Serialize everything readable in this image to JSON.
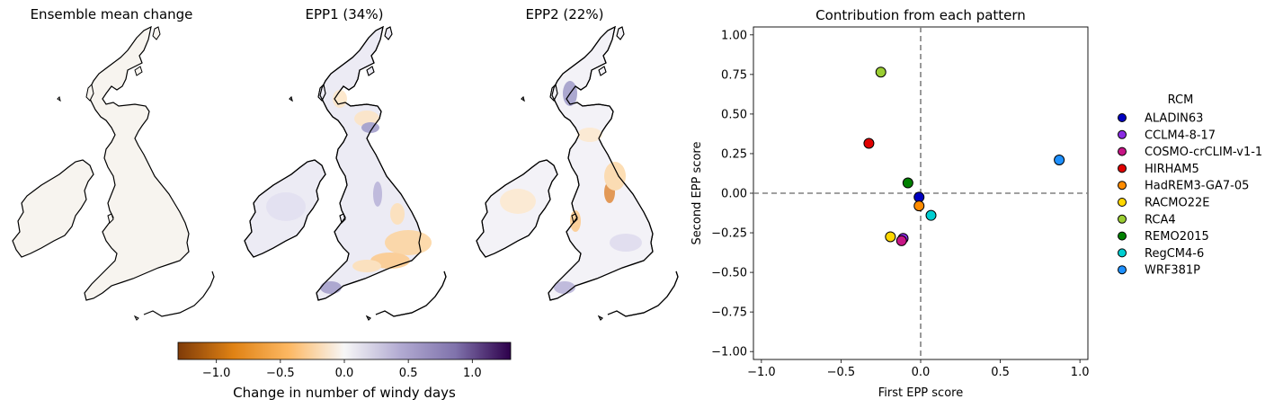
{
  "maps": {
    "panels": [
      {
        "title": "Ensemble mean change"
      },
      {
        "title": "EPP1 (34%)"
      },
      {
        "title": "EPP2 (22%)"
      }
    ],
    "colorbar": {
      "label": "Change in number of windy days",
      "ticks": [
        "−1.0",
        "−0.5",
        "0.0",
        "0.5",
        "1.0"
      ],
      "tick_values": [
        -1.0,
        -0.5,
        0.0,
        0.5,
        1.0
      ],
      "range": [
        -1.3,
        1.3
      ],
      "colors": [
        "#7f3b08",
        "#e08214",
        "#fdb863",
        "#f7f7f7",
        "#b2abd2",
        "#8073ac",
        "#2d004b"
      ]
    }
  },
  "chart_data": {
    "type": "scatter",
    "title": "Contribution from each pattern",
    "xlabel": "First EPP score",
    "ylabel": "Second EPP score",
    "xlim": [
      -1.05,
      1.05
    ],
    "ylim": [
      -1.05,
      1.05
    ],
    "xticks": [
      "−1.0",
      "−0.5",
      "0.0",
      "0.5",
      "1.0"
    ],
    "xtick_values": [
      -1.0,
      -0.5,
      0.0,
      0.5,
      1.0
    ],
    "yticks": [
      "1.00",
      "0.75",
      "0.50",
      "0.25",
      "0.00",
      "−0.25",
      "−0.50",
      "−0.75",
      "−1.00"
    ],
    "ytick_values": [
      1.0,
      0.75,
      0.5,
      0.25,
      0.0,
      -0.25,
      -0.5,
      -0.75,
      -1.0
    ],
    "reference_lines": {
      "x": 0,
      "y": 0,
      "style": "dashed",
      "color": "#808080"
    },
    "legend": {
      "title": "RCM",
      "placement": "outside-right"
    },
    "series": [
      {
        "name": "ALADIN63",
        "color": "#0000c0",
        "x": -0.01,
        "y": -0.025
      },
      {
        "name": "CCLM4-8-17",
        "color": "#8a2be2",
        "x": -0.11,
        "y": -0.285
      },
      {
        "name": "COSMO-crCLIM-v1-1",
        "color": "#c71585",
        "x": -0.12,
        "y": -0.3
      },
      {
        "name": "HIRHAM5",
        "color": "#e00000",
        "x": -0.325,
        "y": 0.315
      },
      {
        "name": "HadREM3-GA7-05",
        "color": "#ff8c00",
        "x": -0.01,
        "y": -0.08
      },
      {
        "name": "RACMO22E",
        "color": "#ffd700",
        "x": -0.19,
        "y": -0.275
      },
      {
        "name": "RCA4",
        "color": "#9acd32",
        "x": -0.25,
        "y": 0.765
      },
      {
        "name": "REMO2015",
        "color": "#008000",
        "x": -0.08,
        "y": 0.065
      },
      {
        "name": "RegCM4-6",
        "color": "#00ced1",
        "x": 0.065,
        "y": -0.14
      },
      {
        "name": "WRF381P",
        "color": "#1e90ff",
        "x": 0.87,
        "y": 0.21
      }
    ]
  }
}
